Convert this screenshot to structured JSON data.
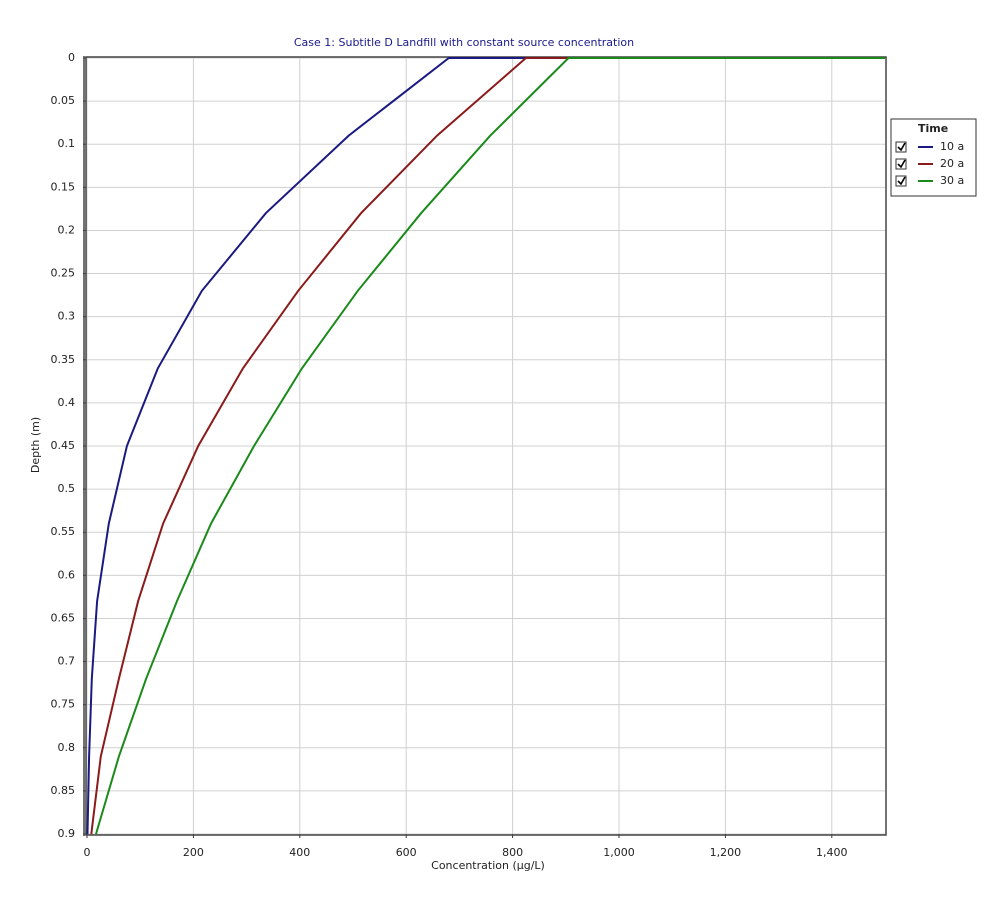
{
  "chart_data": {
    "type": "line",
    "title": "Case 1: Subtitle D Landfill with constant source concentration",
    "x_label": "Concentration (µg/L)",
    "y_label": "Depth (m)",
    "legend_title": "Time",
    "y": [
      0,
      0,
      0.09,
      0.18,
      0.27,
      0.36,
      0.45,
      0.54,
      0.63,
      0.72,
      0.81,
      0.9
    ],
    "series": [
      {
        "name": "10 a",
        "color": "#1a1a80",
        "values": [
          1500,
          680,
          492,
          336,
          216,
          133,
          75,
          41,
          19,
          9,
          4,
          1
        ]
      },
      {
        "name": "20 a",
        "color": "#8b1a1a",
        "values": [
          1500,
          825,
          658,
          515,
          397,
          293,
          209,
          143,
          96,
          60,
          26,
          8
        ]
      },
      {
        "name": "30 a",
        "color": "#1a8a1a",
        "values": [
          1500,
          905,
          758,
          628,
          509,
          404,
          314,
          233,
          169,
          111,
          60,
          17
        ]
      }
    ],
    "xlim": [
      0,
      1500
    ],
    "xticks": [
      0,
      200,
      400,
      600,
      800,
      {
        "value": 1000,
        "label": "1,000"
      },
      {
        "value": 1200,
        "label": "1,200"
      },
      {
        "value": 1400,
        "label": "1,400"
      }
    ],
    "ylim": [
      0,
      0.9
    ],
    "y_inverted": true,
    "yticks": [
      0,
      0.05,
      0.1,
      0.15,
      0.2,
      0.25,
      0.3,
      0.35,
      0.4,
      0.45,
      0.5,
      0.55,
      0.6,
      0.65,
      0.7,
      0.75,
      0.8,
      0.85,
      0.9
    ],
    "grid": true
  }
}
